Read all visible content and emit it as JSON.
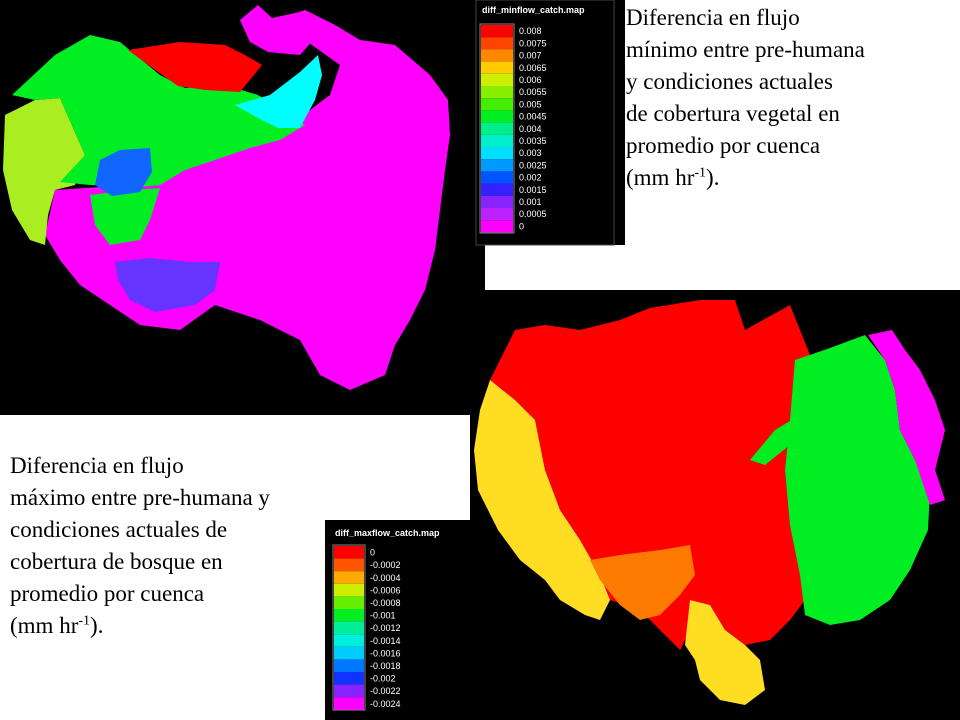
{
  "colors": {
    "background_dark": "#000000",
    "panel_white": "#ffffff",
    "red": "#ff0000",
    "orange": "#ff7a00",
    "yellow": "#ffdd22",
    "lime": "#aaee22",
    "green": "#00ee22",
    "cyan": "#00ffff",
    "blue": "#1166ff",
    "purple": "#6633ff",
    "magenta": "#ff00ff"
  },
  "top_map": {
    "legend_title": "diff_minflow_catch.map",
    "legend": [
      {
        "label": "0.008",
        "color": "#ff0000"
      },
      {
        "label": "0.0075",
        "color": "#ff4400"
      },
      {
        "label": "0.007",
        "color": "#ff8800"
      },
      {
        "label": "0.0065",
        "color": "#ffcc00"
      },
      {
        "label": "0.006",
        "color": "#ccee00"
      },
      {
        "label": "0.0055",
        "color": "#88ee00"
      },
      {
        "label": "0.005",
        "color": "#44ee00"
      },
      {
        "label": "0.0045",
        "color": "#00ee22"
      },
      {
        "label": "0.004",
        "color": "#00ee88"
      },
      {
        "label": "0.0035",
        "color": "#00eecc"
      },
      {
        "label": "0.003",
        "color": "#00ddff"
      },
      {
        "label": "0.0025",
        "color": "#0099ff"
      },
      {
        "label": "0.002",
        "color": "#0055ff"
      },
      {
        "label": "0.0015",
        "color": "#3322ff"
      },
      {
        "label": "0.001",
        "color": "#8822ff"
      },
      {
        "label": "0.0005",
        "color": "#bb22ff"
      },
      {
        "label": "0",
        "color": "#ff00ff"
      }
    ],
    "caption": [
      "Diferencia en flujo",
      "mínimo entre pre-humana",
      "y condiciones actuales",
      "de cobertura vegetal en",
      "promedio por cuenca"
    ],
    "unit": {
      "prefix": "(mm hr",
      "exponent": "-1",
      "suffix": ")."
    }
  },
  "bottom_map": {
    "legend_title": "diff_maxflow_catch.map",
    "legend": [
      {
        "label": "0",
        "color": "#ff0000"
      },
      {
        "label": "-0.0002",
        "color": "#ff5500"
      },
      {
        "label": "-0.0004",
        "color": "#ffaa00"
      },
      {
        "label": "-0.0006",
        "color": "#ccee00"
      },
      {
        "label": "-0.0008",
        "color": "#66ee00"
      },
      {
        "label": "-0.001",
        "color": "#00ee22"
      },
      {
        "label": "-0.0012",
        "color": "#00ee99"
      },
      {
        "label": "-0.0014",
        "color": "#00eedd"
      },
      {
        "label": "-0.0016",
        "color": "#00ccff"
      },
      {
        "label": "-0.0018",
        "color": "#0077ff"
      },
      {
        "label": "-0.002",
        "color": "#1133ff"
      },
      {
        "label": "-0.0022",
        "color": "#8822ff"
      },
      {
        "label": "-0.0024",
        "color": "#ff00ff"
      }
    ],
    "caption": [
      "Diferencia en flujo",
      "máximo entre pre-humana y",
      "condiciones actuales de",
      "cobertura de bosque en",
      "promedio por cuenca"
    ],
    "unit": {
      "prefix": "(mm hr",
      "exponent": "-1",
      "suffix": ")."
    }
  }
}
